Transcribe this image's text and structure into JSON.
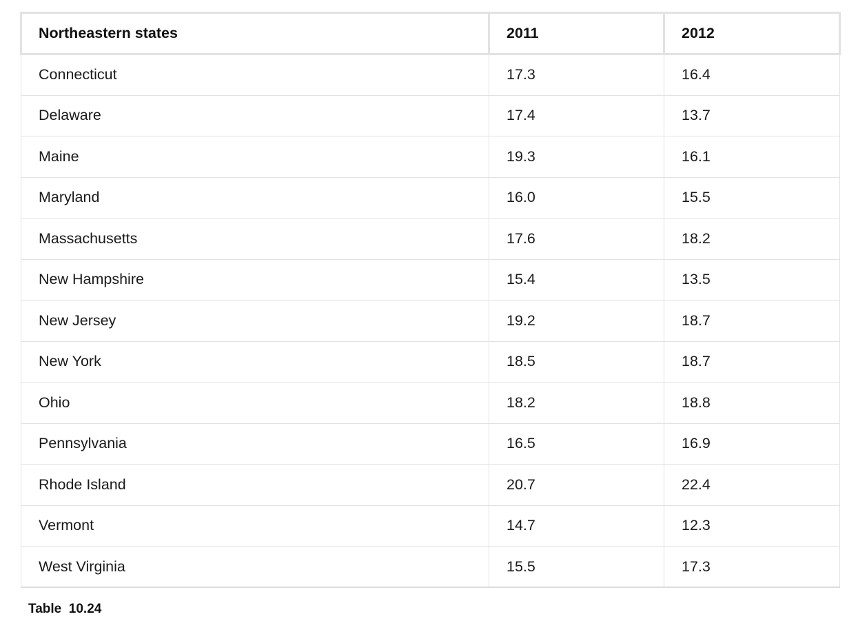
{
  "table": {
    "headers": [
      "Northeastern states",
      "2011",
      "2012"
    ],
    "rows": [
      [
        "Connecticut",
        "17.3",
        "16.4"
      ],
      [
        "Delaware",
        "17.4",
        "13.7"
      ],
      [
        "Maine",
        "19.3",
        "16.1"
      ],
      [
        "Maryland",
        "16.0",
        "15.5"
      ],
      [
        "Massachusetts",
        "17.6",
        "18.2"
      ],
      [
        "New Hampshire",
        "15.4",
        "13.5"
      ],
      [
        "New Jersey",
        "19.2",
        "18.7"
      ],
      [
        "New York",
        "18.5",
        "18.7"
      ],
      [
        "Ohio",
        "18.2",
        "18.8"
      ],
      [
        "Pennsylvania",
        "16.5",
        "16.9"
      ],
      [
        "Rhode Island",
        "20.7",
        "22.4"
      ],
      [
        "Vermont",
        "14.7",
        "12.3"
      ],
      [
        "West Virginia",
        "15.5",
        "17.3"
      ]
    ]
  },
  "caption": {
    "label": "Table",
    "number": "10.24"
  }
}
